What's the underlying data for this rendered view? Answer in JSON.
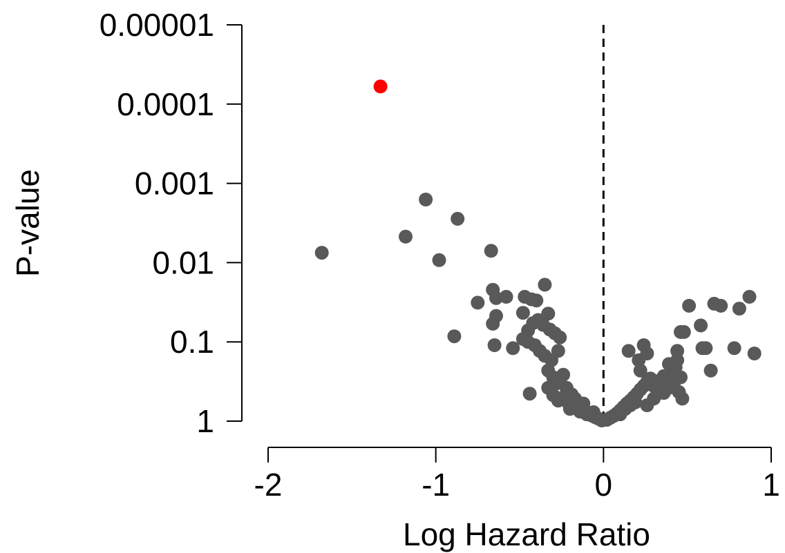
{
  "chart_data": {
    "type": "scatter",
    "xlabel": "Log Hazard Ratio",
    "ylabel": "P-value",
    "xlim": [
      -2,
      1
    ],
    "x_ticks": [
      -2,
      -1,
      0,
      1
    ],
    "x_tick_labels": [
      "-2",
      "-1",
      "0",
      "1"
    ],
    "y_scale": "log-reversed",
    "ylim": [
      1,
      1e-05
    ],
    "y_ticks": [
      1,
      0.1,
      0.01,
      0.001,
      0.0001,
      1e-05
    ],
    "y_tick_labels": [
      "1",
      "0.1",
      "0.01",
      "0.001",
      "0.0001",
      "0.00001"
    ],
    "reference_line": {
      "x": 0,
      "style": "dashed"
    },
    "grid": false,
    "colors": {
      "default": "#595959",
      "highlight": "#ff0000"
    },
    "series": [
      {
        "color": "#595959",
        "points": [
          [
            -1.68,
            0.0075
          ],
          [
            -1.18,
            0.0047
          ],
          [
            -1.06,
            0.0016
          ],
          [
            -0.98,
            0.0093
          ],
          [
            -0.87,
            0.0028
          ],
          [
            -0.67,
            0.0071
          ],
          [
            -0.89,
            0.085
          ],
          [
            -0.75,
            0.032
          ],
          [
            -0.66,
            0.022
          ],
          [
            -0.64,
            0.028
          ],
          [
            -0.58,
            0.027
          ],
          [
            -0.66,
            0.059
          ],
          [
            -0.64,
            0.047
          ],
          [
            -0.65,
            0.11
          ],
          [
            -0.54,
            0.12
          ],
          [
            -0.47,
            0.027
          ],
          [
            -0.43,
            0.029
          ],
          [
            -0.4,
            0.03
          ],
          [
            -0.35,
            0.019
          ],
          [
            -0.48,
            0.043
          ],
          [
            -0.45,
            0.072
          ],
          [
            -0.42,
            0.058
          ],
          [
            -0.39,
            0.053
          ],
          [
            -0.36,
            0.061
          ],
          [
            -0.33,
            0.044
          ],
          [
            -0.32,
            0.07
          ],
          [
            -0.29,
            0.078
          ],
          [
            -0.26,
            0.088
          ],
          [
            -0.48,
            0.092
          ],
          [
            -0.45,
            0.1
          ],
          [
            -0.41,
            0.11
          ],
          [
            -0.38,
            0.13
          ],
          [
            -0.35,
            0.15
          ],
          [
            -0.31,
            0.17
          ],
          [
            -0.27,
            0.13
          ],
          [
            -0.44,
            0.45
          ],
          [
            -0.33,
            0.23
          ],
          [
            -0.3,
            0.28
          ],
          [
            -0.27,
            0.33
          ],
          [
            -0.24,
            0.26
          ],
          [
            -0.22,
            0.38
          ],
          [
            -0.33,
            0.38
          ],
          [
            -0.3,
            0.47
          ],
          [
            -0.27,
            0.55
          ],
          [
            -0.24,
            0.5
          ],
          [
            -0.21,
            0.59
          ],
          [
            -0.19,
            0.46
          ],
          [
            -0.17,
            0.52
          ],
          [
            -0.15,
            0.62
          ],
          [
            -0.13,
            0.68
          ],
          [
            -0.11,
            0.74
          ],
          [
            -0.09,
            0.79
          ],
          [
            -0.07,
            0.85
          ],
          [
            -0.05,
            0.89
          ],
          [
            -0.03,
            0.93
          ],
          [
            -0.01,
            0.98
          ],
          [
            -0.2,
            0.7
          ],
          [
            -0.14,
            0.76
          ],
          [
            -0.1,
            0.82
          ],
          [
            -0.06,
            0.77
          ],
          [
            -0.16,
            0.69
          ],
          [
            -0.12,
            0.6
          ],
          [
            0.02,
            0.96
          ],
          [
            0.04,
            0.91
          ],
          [
            0.06,
            0.86
          ],
          [
            0.08,
            0.8
          ],
          [
            0.1,
            0.73
          ],
          [
            0.12,
            0.66
          ],
          [
            0.14,
            0.6
          ],
          [
            0.16,
            0.55
          ],
          [
            0.18,
            0.5
          ],
          [
            0.2,
            0.45
          ],
          [
            0.22,
            0.4
          ],
          [
            0.24,
            0.36
          ],
          [
            0.26,
            0.32
          ],
          [
            0.28,
            0.29
          ],
          [
            0.1,
            0.82
          ],
          [
            0.13,
            0.7
          ],
          [
            0.16,
            0.63
          ],
          [
            0.19,
            0.58
          ],
          [
            0.15,
            0.13
          ],
          [
            0.22,
            0.23
          ],
          [
            0.24,
            0.11
          ],
          [
            0.26,
            0.14
          ],
          [
            0.21,
            0.17
          ],
          [
            0.3,
            0.36
          ],
          [
            0.33,
            0.31
          ],
          [
            0.36,
            0.27
          ],
          [
            0.39,
            0.38
          ],
          [
            0.42,
            0.33
          ],
          [
            0.45,
            0.43
          ],
          [
            0.46,
            0.28
          ],
          [
            0.47,
            0.52
          ],
          [
            0.44,
            0.17
          ],
          [
            0.46,
            0.075
          ],
          [
            0.48,
            0.075
          ],
          [
            0.39,
            0.19
          ],
          [
            0.43,
            0.21
          ],
          [
            0.36,
            0.44
          ],
          [
            0.3,
            0.52
          ],
          [
            0.26,
            0.63
          ],
          [
            0.51,
            0.035
          ],
          [
            0.58,
            0.062
          ],
          [
            0.59,
            0.12
          ],
          [
            0.61,
            0.12
          ],
          [
            0.64,
            0.23
          ],
          [
            0.66,
            0.033
          ],
          [
            0.7,
            0.035
          ],
          [
            0.78,
            0.12
          ],
          [
            0.81,
            0.038
          ],
          [
            0.87,
            0.027
          ],
          [
            0.9,
            0.14
          ],
          [
            0.44,
            0.13
          ],
          [
            0.4,
            0.25
          ],
          [
            0.33,
            0.44
          ]
        ]
      },
      {
        "color": "#ff0000",
        "points": [
          [
            -1.33,
            6e-05
          ]
        ]
      }
    ]
  }
}
